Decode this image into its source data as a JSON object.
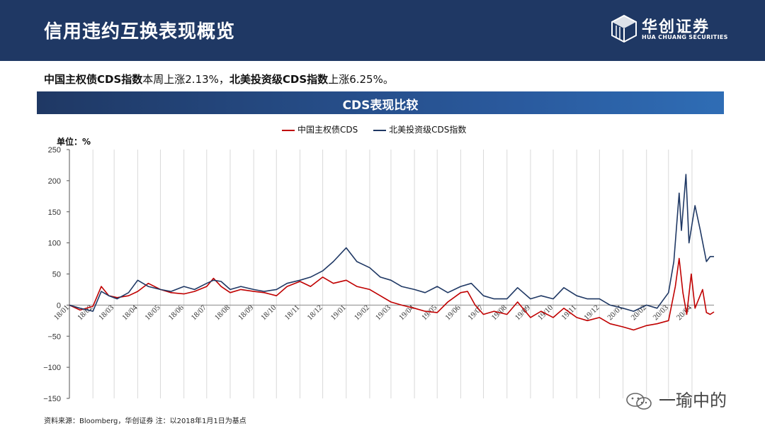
{
  "header": {
    "title": "信用违约互换表现概览"
  },
  "logo": {
    "cn": "华创证券",
    "en": "HUA CHUANG SECURITIES"
  },
  "summary": {
    "part1_bold": "中国主权债CDS指数",
    "part1_text": "本周上涨2.13%，",
    "part2_bold": "北美投资级CDS指数",
    "part2_text": "上涨6.25%。"
  },
  "banner": {
    "title": "CDS表现比较"
  },
  "colors": {
    "header_bg": "#1f3864",
    "china": "#c00000",
    "na": "#1f3864"
  },
  "chart_data": {
    "type": "line",
    "title": "",
    "unit_label": "单位：%",
    "xlabel": "",
    "ylabel": "",
    "ylim": [
      -150,
      250
    ],
    "y_ticks": [
      250,
      200,
      150,
      100,
      50,
      0,
      -50,
      -100,
      -150
    ],
    "x_range": [
      "2018-01-01",
      "2020-04-30"
    ],
    "x_ticks": [
      "18/01",
      "18/02",
      "18/03",
      "18/04",
      "18/05",
      "18/06",
      "18/07",
      "18/08",
      "18/09",
      "18/10",
      "18/11",
      "18/12",
      "19/01",
      "19/02",
      "19/03",
      "19/04",
      "19/05",
      "19/06",
      "19/07",
      "19/08",
      "19/09",
      "19/10",
      "19/11",
      "19/12",
      "20/01",
      "20/02",
      "20/03",
      "20/04"
    ],
    "grid": "vertical",
    "legend_position": "top",
    "series": [
      {
        "name": "中国主权债CDS",
        "color": "#c00000",
        "points": [
          [
            "2018-01-01",
            0
          ],
          [
            "2018-01-15",
            -8
          ],
          [
            "2018-02-01",
            -2
          ],
          [
            "2018-02-12",
            30
          ],
          [
            "2018-02-22",
            15
          ],
          [
            "2018-03-05",
            12
          ],
          [
            "2018-03-20",
            15
          ],
          [
            "2018-04-01",
            22
          ],
          [
            "2018-04-15",
            35
          ],
          [
            "2018-05-01",
            25
          ],
          [
            "2018-05-15",
            20
          ],
          [
            "2018-06-01",
            18
          ],
          [
            "2018-06-15",
            22
          ],
          [
            "2018-07-01",
            30
          ],
          [
            "2018-07-10",
            43
          ],
          [
            "2018-07-20",
            30
          ],
          [
            "2018-08-01",
            20
          ],
          [
            "2018-08-15",
            25
          ],
          [
            "2018-09-01",
            22
          ],
          [
            "2018-09-15",
            20
          ],
          [
            "2018-10-01",
            15
          ],
          [
            "2018-10-15",
            30
          ],
          [
            "2018-11-01",
            38
          ],
          [
            "2018-11-15",
            30
          ],
          [
            "2018-12-01",
            45
          ],
          [
            "2018-12-15",
            35
          ],
          [
            "2019-01-01",
            40
          ],
          [
            "2019-01-15",
            30
          ],
          [
            "2019-02-01",
            25
          ],
          [
            "2019-02-15",
            15
          ],
          [
            "2019-03-01",
            5
          ],
          [
            "2019-03-15",
            0
          ],
          [
            "2019-04-01",
            -5
          ],
          [
            "2019-04-15",
            -10
          ],
          [
            "2019-05-01",
            -12
          ],
          [
            "2019-05-15",
            5
          ],
          [
            "2019-06-01",
            20
          ],
          [
            "2019-06-10",
            22
          ],
          [
            "2019-06-20",
            0
          ],
          [
            "2019-07-01",
            -15
          ],
          [
            "2019-07-15",
            -10
          ],
          [
            "2019-08-01",
            -15
          ],
          [
            "2019-08-15",
            5
          ],
          [
            "2019-09-01",
            -20
          ],
          [
            "2019-09-15",
            -10
          ],
          [
            "2019-10-01",
            -20
          ],
          [
            "2019-10-15",
            -5
          ],
          [
            "2019-11-01",
            -20
          ],
          [
            "2019-11-15",
            -25
          ],
          [
            "2019-12-01",
            -20
          ],
          [
            "2019-12-15",
            -30
          ],
          [
            "2020-01-01",
            -35
          ],
          [
            "2020-01-15",
            -40
          ],
          [
            "2020-02-01",
            -33
          ],
          [
            "2020-02-15",
            -30
          ],
          [
            "2020-03-01",
            -25
          ],
          [
            "2020-03-10",
            30
          ],
          [
            "2020-03-15",
            75
          ],
          [
            "2020-03-20",
            20
          ],
          [
            "2020-03-25",
            -15
          ],
          [
            "2020-03-31",
            50
          ],
          [
            "2020-04-05",
            -5
          ],
          [
            "2020-04-15",
            25
          ],
          [
            "2020-04-20",
            -12
          ],
          [
            "2020-04-25",
            -15
          ],
          [
            "2020-04-30",
            -11
          ]
        ]
      },
      {
        "name": "北美投资级CDS指数",
        "color": "#1f3864",
        "points": [
          [
            "2018-01-01",
            0
          ],
          [
            "2018-01-15",
            -5
          ],
          [
            "2018-02-01",
            -10
          ],
          [
            "2018-02-12",
            22
          ],
          [
            "2018-02-22",
            15
          ],
          [
            "2018-03-05",
            10
          ],
          [
            "2018-03-20",
            20
          ],
          [
            "2018-04-01",
            40
          ],
          [
            "2018-04-15",
            30
          ],
          [
            "2018-05-01",
            25
          ],
          [
            "2018-05-15",
            22
          ],
          [
            "2018-06-01",
            30
          ],
          [
            "2018-06-15",
            25
          ],
          [
            "2018-07-01",
            35
          ],
          [
            "2018-07-10",
            40
          ],
          [
            "2018-07-20",
            38
          ],
          [
            "2018-08-01",
            25
          ],
          [
            "2018-08-15",
            30
          ],
          [
            "2018-09-01",
            25
          ],
          [
            "2018-09-15",
            22
          ],
          [
            "2018-10-01",
            25
          ],
          [
            "2018-10-15",
            35
          ],
          [
            "2018-11-01",
            40
          ],
          [
            "2018-11-15",
            45
          ],
          [
            "2018-12-01",
            55
          ],
          [
            "2018-12-15",
            70
          ],
          [
            "2019-01-01",
            92
          ],
          [
            "2019-01-15",
            70
          ],
          [
            "2019-02-01",
            60
          ],
          [
            "2019-02-15",
            45
          ],
          [
            "2019-03-01",
            40
          ],
          [
            "2019-03-15",
            30
          ],
          [
            "2019-04-01",
            25
          ],
          [
            "2019-04-15",
            20
          ],
          [
            "2019-05-01",
            30
          ],
          [
            "2019-05-15",
            20
          ],
          [
            "2019-06-01",
            30
          ],
          [
            "2019-06-15",
            35
          ],
          [
            "2019-07-01",
            15
          ],
          [
            "2019-07-15",
            10
          ],
          [
            "2019-08-01",
            10
          ],
          [
            "2019-08-15",
            28
          ],
          [
            "2019-09-01",
            10
          ],
          [
            "2019-09-15",
            15
          ],
          [
            "2019-10-01",
            10
          ],
          [
            "2019-10-15",
            28
          ],
          [
            "2019-11-01",
            15
          ],
          [
            "2019-11-15",
            10
          ],
          [
            "2019-12-01",
            10
          ],
          [
            "2019-12-15",
            0
          ],
          [
            "2020-01-01",
            -5
          ],
          [
            "2020-01-15",
            -10
          ],
          [
            "2020-02-01",
            0
          ],
          [
            "2020-02-15",
            -5
          ],
          [
            "2020-03-01",
            20
          ],
          [
            "2020-03-08",
            70
          ],
          [
            "2020-03-15",
            180
          ],
          [
            "2020-03-18",
            120
          ],
          [
            "2020-03-24",
            210
          ],
          [
            "2020-03-28",
            100
          ],
          [
            "2020-04-05",
            160
          ],
          [
            "2020-04-12",
            120
          ],
          [
            "2020-04-20",
            70
          ],
          [
            "2020-04-25",
            78
          ],
          [
            "2020-04-30",
            78
          ]
        ]
      }
    ]
  },
  "footer": {
    "source": "资料来源：Bloomberg，华创证券   注：以2018年1月1日为基点"
  },
  "watermark": {
    "text": "一瑜中的"
  }
}
